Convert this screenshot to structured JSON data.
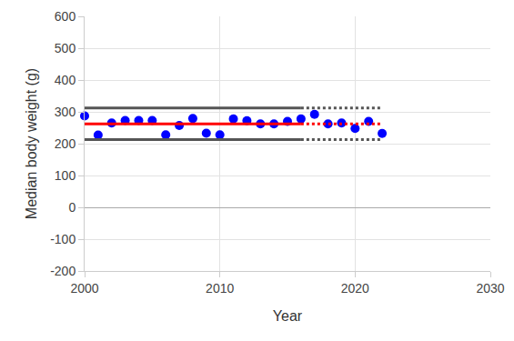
{
  "chart_data": {
    "type": "scatter",
    "x_label": "Year",
    "y_label": "Median body weight (g)",
    "xlim": [
      2000,
      2030
    ],
    "xticks": [
      2000,
      2010,
      2020,
      2030
    ],
    "ylim": [
      -200,
      600
    ],
    "yticks": [
      -200,
      -100,
      0,
      100,
      200,
      300,
      400,
      500,
      600
    ],
    "grid": true,
    "series": [
      {
        "type": "scatter",
        "marker": "circle",
        "color": "#0000ff",
        "x": [
          2000,
          2001,
          2002,
          2003,
          2004,
          2005,
          2006,
          2007,
          2008,
          2009,
          2010,
          2011,
          2012,
          2013,
          2014,
          2015,
          2016,
          2017,
          2018,
          2019,
          2020,
          2021,
          2022
        ],
        "values": [
          287,
          227,
          265,
          273,
          273,
          273,
          228,
          257,
          279,
          233,
          228,
          278,
          272,
          262,
          262,
          270,
          278,
          292,
          262,
          265,
          248,
          270,
          232
        ]
      },
      {
        "type": "line",
        "line_style": "solid",
        "color": "#ff0000",
        "x": [
          2000,
          2016
        ],
        "values": [
          262,
          262
        ]
      },
      {
        "type": "line",
        "line_style": "dotted",
        "color": "#ff0000",
        "x": [
          2016,
          2022
        ],
        "values": [
          262,
          262
        ]
      },
      {
        "type": "line",
        "line_style": "solid",
        "color": "#555555",
        "x": [
          2000,
          2016
        ],
        "values": [
          312,
          312
        ]
      },
      {
        "type": "line",
        "line_style": "dotted",
        "color": "#555555",
        "x": [
          2016,
          2022
        ],
        "values": [
          312,
          312
        ]
      },
      {
        "type": "line",
        "line_style": "solid",
        "color": "#555555",
        "x": [
          2000,
          2016
        ],
        "values": [
          213,
          213
        ]
      },
      {
        "type": "line",
        "line_style": "dotted",
        "color": "#555555",
        "x": [
          2016,
          2022
        ],
        "values": [
          213,
          213
        ]
      }
    ]
  }
}
